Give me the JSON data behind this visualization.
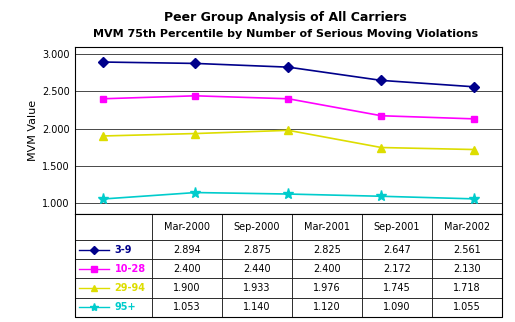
{
  "title_line1": "Peer Group Analysis of All Carriers",
  "title_line2": "MVM 75th Percentile by Number of Serious Moving Violations",
  "x_labels": [
    "Mar-2000",
    "Sep-2000",
    "Mar-2001",
    "Sep-2001",
    "Mar-2002"
  ],
  "ylabel": "MVM Value",
  "series": [
    {
      "label": "3-9",
      "values": [
        2.894,
        2.875,
        2.825,
        2.647,
        2.561
      ],
      "color": "#00008B",
      "marker": "D",
      "linestyle": "-"
    },
    {
      "label": "10-28",
      "values": [
        2.4,
        2.44,
        2.4,
        2.172,
        2.13
      ],
      "color": "#FF00FF",
      "marker": "s",
      "linestyle": "-"
    },
    {
      "label": "29-94",
      "values": [
        1.9,
        1.933,
        1.976,
        1.745,
        1.718
      ],
      "color": "#DDDD00",
      "marker": "^",
      "linestyle": "-"
    },
    {
      "label": "95+",
      "values": [
        1.053,
        1.14,
        1.12,
        1.09,
        1.055
      ],
      "color": "#00CCCC",
      "marker": "*",
      "linestyle": "-"
    }
  ],
  "ylim": [
    0.85,
    3.1
  ],
  "yticks": [
    1.0,
    1.5,
    2.0,
    2.5,
    3.0
  ],
  "ytick_labels": [
    "1.000",
    "1.500",
    "2.000",
    "2.500",
    "3.000"
  ],
  "table_rows": [
    [
      "3-9",
      "2.894",
      "2.875",
      "2.825",
      "2.647",
      "2.561"
    ],
    [
      "10-28",
      "2.400",
      "2.440",
      "2.400",
      "2.172",
      "2.130"
    ],
    [
      "29-94",
      "1.900",
      "1.933",
      "1.976",
      "1.745",
      "1.718"
    ],
    [
      "95+",
      "1.053",
      "1.140",
      "1.120",
      "1.090",
      "1.055"
    ]
  ],
  "row_colors": [
    "#00008B",
    "#FF00FF",
    "#DDDD00",
    "#00CCCC"
  ],
  "row_markers": [
    "D",
    "s",
    "^",
    "*"
  ],
  "background_color": "#FFFFFF",
  "plot_bg_color": "#FFFFFF",
  "border_color": "#000000"
}
